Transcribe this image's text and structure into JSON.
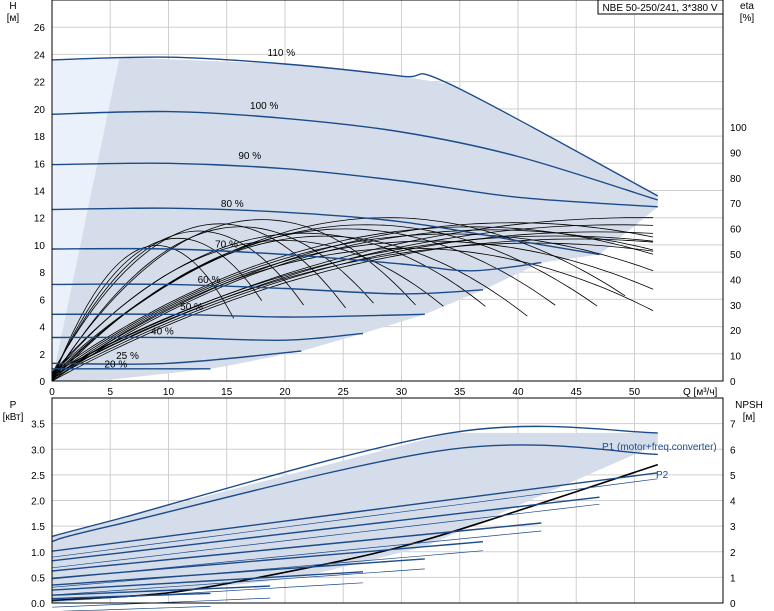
{
  "chart_data": [
    {
      "type": "line",
      "title": "NBE 50-250/241, 3*380 V",
      "xlabel": "Q [м³/ч]",
      "ylabel": "H",
      "ylabel_unit": "[м]",
      "y2label": "eta",
      "y2label_unit": "[%]",
      "xlim": [
        0,
        57.6
      ],
      "ylim": [
        0,
        28
      ],
      "x_ticks": [
        0,
        5,
        10,
        15,
        20,
        25,
        30,
        35,
        40,
        45,
        50
      ],
      "y_ticks": [
        0,
        2,
        4,
        6,
        8,
        10,
        12,
        14,
        16,
        18,
        20,
        22,
        24,
        26
      ],
      "y2lim": [
        0,
        100
      ],
      "y2_ticks": [
        0,
        10,
        20,
        30,
        40,
        50,
        60,
        70,
        80,
        90,
        100
      ],
      "grid": true,
      "series": [
        {
          "name": "110 %",
          "x": [
            0,
            10,
            20,
            30,
            34.2,
            52
          ],
          "y": [
            23.6,
            23.8,
            23.3,
            22.4,
            21.8,
            13.6
          ]
        },
        {
          "name": "100 %",
          "x": [
            0,
            10,
            20,
            30,
            40,
            52
          ],
          "y": [
            19.6,
            19.8,
            19.3,
            18.3,
            16.5,
            13.3
          ]
        },
        {
          "name": "90 %",
          "x": [
            0,
            10,
            20,
            30,
            40,
            52
          ],
          "y": [
            15.9,
            16.0,
            15.6,
            14.7,
            13.5,
            12.8
          ]
        },
        {
          "name": "80 %",
          "x": [
            0,
            10,
            20,
            30,
            40,
            47
          ],
          "y": [
            12.6,
            12.7,
            12.4,
            11.7,
            10.3,
            9.3
          ]
        },
        {
          "name": "70 %",
          "x": [
            0,
            10,
            20,
            30,
            36,
            42
          ],
          "y": [
            9.7,
            9.7,
            9.3,
            8.6,
            8.1,
            8.7
          ]
        },
        {
          "name": "60 %",
          "x": [
            0,
            10,
            20,
            30,
            37
          ],
          "y": [
            7.1,
            7.1,
            6.8,
            6.4,
            6.7
          ]
        },
        {
          "name": "50 %",
          "x": [
            0,
            10,
            20,
            27,
            32
          ],
          "y": [
            4.9,
            4.9,
            4.7,
            4.8,
            4.9
          ]
        },
        {
          "name": "40 %",
          "x": [
            0,
            10,
            20,
            26.7
          ],
          "y": [
            3.2,
            3.2,
            3.0,
            3.5
          ]
        },
        {
          "name": "25 %",
          "x": [
            0,
            10,
            21.4
          ],
          "y": [
            1.3,
            1.3,
            2.2
          ]
        },
        {
          "name": "20 %",
          "x": [
            0,
            6,
            13.6
          ],
          "y": [
            0.9,
            0.9,
            0.9
          ]
        }
      ]
    },
    {
      "type": "line",
      "xlabel": "",
      "ylabel": "P",
      "ylabel_unit": "[кВт]",
      "y2label": "NPSH",
      "y2label_unit": "[м]",
      "xlim": [
        0,
        57.6
      ],
      "ylim": [
        0,
        4
      ],
      "y_ticks": [
        0.0,
        0.5,
        1.0,
        1.5,
        2.0,
        2.5,
        3.0,
        3.5
      ],
      "y2lim": [
        0,
        8
      ],
      "y2_ticks": [
        0,
        1,
        2,
        3,
        4,
        5,
        6,
        7
      ],
      "grid": true,
      "annotations": [
        "P1 (motor+freq.converter)",
        "P2"
      ],
      "series": [
        {
          "name": "P1",
          "x": [
            0,
            5,
            34.2,
            52
          ],
          "y": [
            1.3,
            1.6,
            3.32,
            3.32
          ]
        },
        {
          "name": "P2",
          "x": [
            0,
            5,
            34.2,
            52
          ],
          "y": [
            1.2,
            1.5,
            3.0,
            2.9
          ]
        },
        {
          "name": "NPSH",
          "x": [
            0,
            10,
            20,
            30,
            40,
            52
          ],
          "y": [
            0.05,
            0.2,
            0.6,
            1.1,
            1.8,
            2.7
          ]
        }
      ]
    }
  ],
  "labels": {
    "title": "NBE 50-250/241, 3*380 V",
    "h": "H",
    "h_unit": "[м]",
    "eta": "eta",
    "eta_unit": "[%]",
    "q": "Q [м³/ч]",
    "p": "P",
    "p_unit": "[кВт]",
    "npsh": "NPSH",
    "npsh_unit": "[м]",
    "p1": "P1 (motor+freq.converter)",
    "p2": "P2",
    "speeds": [
      "110 %",
      "100 %",
      "90 %",
      "80 %",
      "70 %",
      "60 %",
      "50 %",
      "40 %",
      "25 %",
      "20 %"
    ]
  },
  "colors": {
    "area": "#d4dde9",
    "area_light": "#eaf1fb",
    "curve": "#1c4b8a"
  }
}
